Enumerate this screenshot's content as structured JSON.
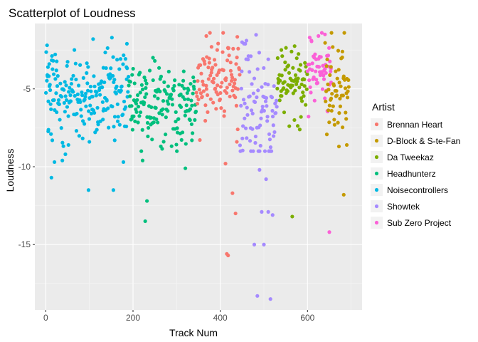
{
  "chart_data": {
    "type": "scatter",
    "title": "Scatterplot of Loudness",
    "xlabel": "Track Num",
    "ylabel": "Loudness",
    "xlim": [
      -25,
      725
    ],
    "ylim": [
      -19.2,
      -0.8
    ],
    "x_ticks": [
      0,
      200,
      400,
      600
    ],
    "x_tick_labels": [
      "0",
      "200",
      "400",
      "600"
    ],
    "y_ticks": [
      -15,
      -10,
      -5
    ],
    "y_tick_labels": [
      "-15",
      "-10",
      "-5"
    ],
    "grid": true,
    "legend_title": "Artist",
    "legend_position": "right",
    "series": [
      {
        "name": "Noisecontrollers",
        "color": "#00B9E3",
        "x_range": [
          0,
          190
        ],
        "y_center": -5.3,
        "y_spread": 1.25,
        "points": [
          [
            3,
            -2.2
          ],
          [
            5,
            -3.6
          ],
          [
            8,
            -3.4
          ],
          [
            6,
            -5.8
          ],
          [
            12,
            -7.9
          ],
          [
            15,
            -8.3
          ],
          [
            13,
            -10.7
          ],
          [
            20,
            -9.7
          ],
          [
            25,
            -6.5
          ],
          [
            38,
            -9.6
          ],
          [
            45,
            -9.2
          ],
          [
            52,
            -8.6
          ],
          [
            98,
            -11.5
          ],
          [
            100,
            -8.4
          ],
          [
            132,
            -6.4
          ],
          [
            155,
            -11.5
          ],
          [
            158,
            -8.3
          ],
          [
            178,
            -9.7
          ],
          [
            185,
            -3.6
          ],
          [
            186,
            -2.1
          ]
        ]
      },
      {
        "name": "Headhunterz",
        "color": "#00BF7D",
        "x_range": [
          190,
          345
        ],
        "y_center": -5.9,
        "y_spread": 1.2,
        "points": [
          [
            222,
            -9.6
          ],
          [
            232,
            -12.2
          ],
          [
            228,
            -13.5
          ],
          [
            320,
            -10.1
          ],
          [
            198,
            -4.1
          ],
          [
            250,
            -3.2
          ],
          [
            335,
            -8.3
          ],
          [
            340,
            -5.0
          ]
        ]
      },
      {
        "name": "Brennan Heart",
        "color": "#F8766D",
        "x_range": [
          345,
          445
        ],
        "y_center": -4.5,
        "y_spread": 1.25,
        "points": [
          [
            368,
            -1.6
          ],
          [
            380,
            -2.3
          ],
          [
            393,
            -2.5
          ],
          [
            412,
            -9.8
          ],
          [
            415,
            -15.6
          ],
          [
            418,
            -15.7
          ],
          [
            428,
            -11.7
          ],
          [
            435,
            -13.0
          ],
          [
            438,
            -8.4
          ],
          [
            440,
            -7.6
          ]
        ]
      },
      {
        "name": "Showtek",
        "color": "#A58AFF",
        "x_range": [
          445,
          530
        ],
        "y_center": -6.0,
        "y_spread": 1.8,
        "points": [
          [
            450,
            -2.0
          ],
          [
            460,
            -1.9
          ],
          [
            470,
            -2.9
          ],
          [
            478,
            -15.0
          ],
          [
            485,
            -18.3
          ],
          [
            495,
            -12.9
          ],
          [
            500,
            -15.0
          ],
          [
            510,
            -12.9
          ],
          [
            515,
            -18.5
          ],
          [
            520,
            -13.1
          ],
          [
            490,
            -10.2
          ],
          [
            505,
            -10.8
          ]
        ]
      },
      {
        "name": "Da Tweekaz",
        "color": "#7CAE00",
        "x_range": [
          530,
          600
        ],
        "y_center": -4.5,
        "y_spread": 0.95,
        "points": [
          [
            565,
            -13.2
          ],
          [
            540,
            -2.5
          ],
          [
            570,
            -7.0
          ],
          [
            585,
            -6.8
          ]
        ]
      },
      {
        "name": "Sub Zero Project",
        "color": "#FB61D7",
        "x_range": [
          600,
          655
        ],
        "y_center": -4.0,
        "y_spread": 1.15,
        "points": [
          [
            650,
            -14.2
          ],
          [
            605,
            -1.7
          ],
          [
            625,
            -1.6
          ],
          [
            640,
            -1.5
          ]
        ]
      },
      {
        "name": "D-Block & S-te-Fan",
        "color": "#C49A00",
        "x_range": [
          640,
          695
        ],
        "y_center": -5.0,
        "y_spread": 1.35,
        "points": [
          [
            655,
            -1.4
          ],
          [
            672,
            -8.7
          ],
          [
            683,
            -11.8
          ],
          [
            690,
            -8.6
          ],
          [
            680,
            -2.6
          ]
        ]
      }
    ]
  }
}
